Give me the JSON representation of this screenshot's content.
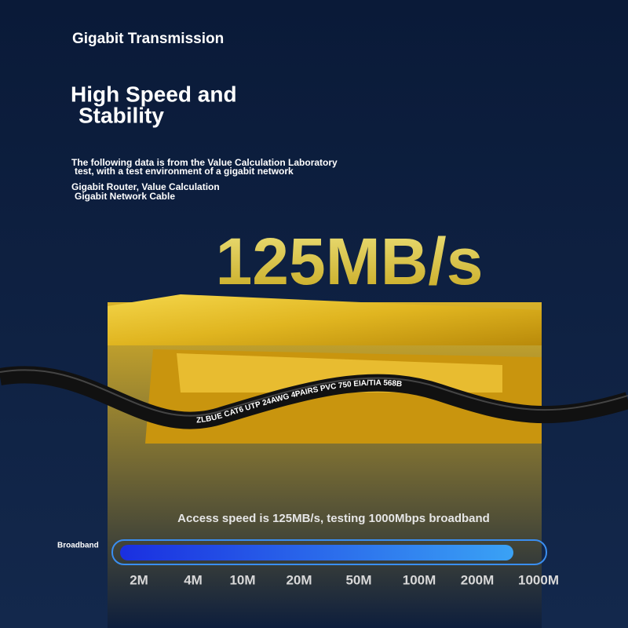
{
  "header": {
    "eyebrow": "Gigabit Transmission",
    "title_line1": "High Speed and",
    "title_line2": "Stability"
  },
  "notes": {
    "line1": "The following data is from the Value Calculation Laboratory",
    "line2": "test, with a test environment of a gigabit network",
    "line3": "Gigabit Router, Value Calculation",
    "line4": "Gigabit Network Cable"
  },
  "speed": "125MB/s",
  "cable_text": "ZLBUE CAT6 UTP 24AWG 4PAIRS PVC 750 EIA/TIA 568B",
  "caption": "Access speed is 125MB/s, testing 1000Mbps broadband",
  "meter": {
    "label": "Broadband",
    "scale": [
      "2M",
      "4M",
      "10M",
      "20M",
      "50M",
      "100M",
      "200M",
      "1000M"
    ]
  }
}
